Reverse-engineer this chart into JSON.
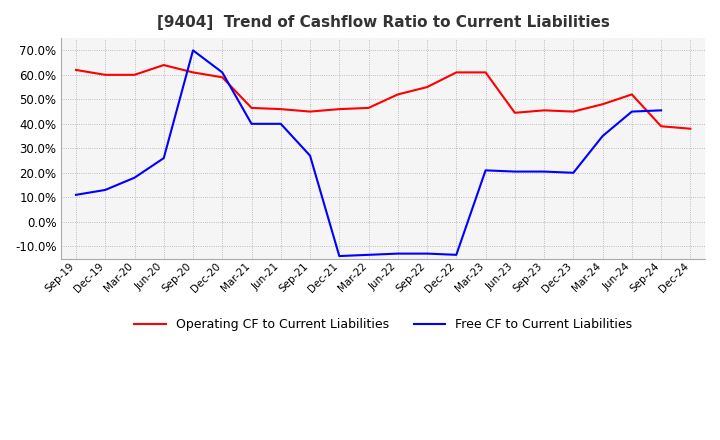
{
  "title": "[9404]  Trend of Cashflow Ratio to Current Liabilities",
  "title_fontsize": 11,
  "x_labels": [
    "Sep-19",
    "Dec-19",
    "Mar-20",
    "Jun-20",
    "Sep-20",
    "Dec-20",
    "Mar-21",
    "Jun-21",
    "Sep-21",
    "Dec-21",
    "Mar-22",
    "Jun-22",
    "Sep-22",
    "Dec-22",
    "Mar-23",
    "Jun-23",
    "Sep-23",
    "Dec-23",
    "Mar-24",
    "Jun-24",
    "Sep-24",
    "Dec-24"
  ],
  "operating_cf": [
    62.0,
    60.0,
    60.0,
    64.0,
    61.0,
    59.0,
    46.5,
    46.0,
    45.0,
    46.0,
    46.5,
    52.0,
    55.0,
    61.0,
    61.0,
    44.5,
    45.5,
    45.0,
    48.0,
    52.0,
    39.0,
    38.0
  ],
  "free_cf": [
    11.0,
    13.0,
    18.0,
    26.0,
    70.0,
    61.0,
    40.0,
    40.0,
    27.0,
    -14.0,
    -13.5,
    -13.0,
    -13.0,
    -13.5,
    21.0,
    20.5,
    20.5,
    20.0,
    35.0,
    45.0,
    45.5,
    null
  ],
  "operating_color": "#ff0000",
  "free_color": "#0000ff",
  "ylim": [
    -15,
    75
  ],
  "yticks": [
    -10.0,
    0.0,
    10.0,
    20.0,
    30.0,
    40.0,
    50.0,
    60.0,
    70.0
  ],
  "grid_color": "#aaaaaa",
  "bg_color": "#f5f5f5",
  "fig_bg_color": "#ffffff",
  "legend_labels": [
    "Operating CF to Current Liabilities",
    "Free CF to Current Liabilities"
  ]
}
